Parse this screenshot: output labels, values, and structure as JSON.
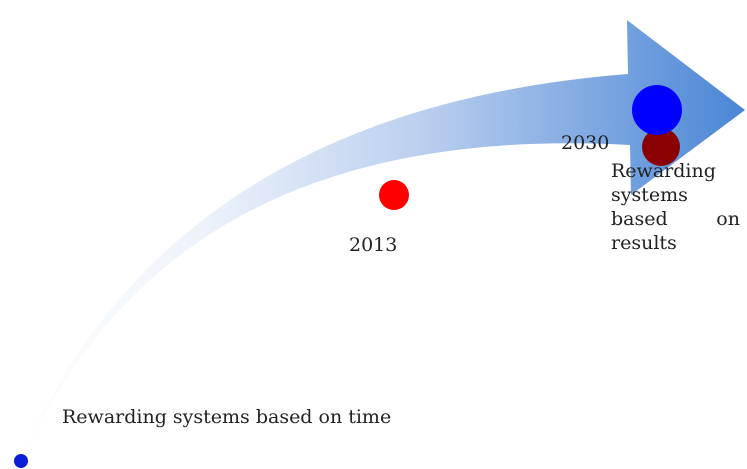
{
  "labels": {
    "start": "Rewarding systems based on time",
    "end": "Rewarding systems based on results"
  },
  "years": {
    "y2013": "2013",
    "y2030": "2030"
  },
  "colors": {
    "arrow_light": "#ffffff",
    "arrow_dark": "#4a86d6",
    "start_dot": "#0a1fd6",
    "dot_2013": "#ff0000",
    "dot_2030_blue": "#0000ff",
    "dot_2030_darkred": "#8b0000"
  }
}
